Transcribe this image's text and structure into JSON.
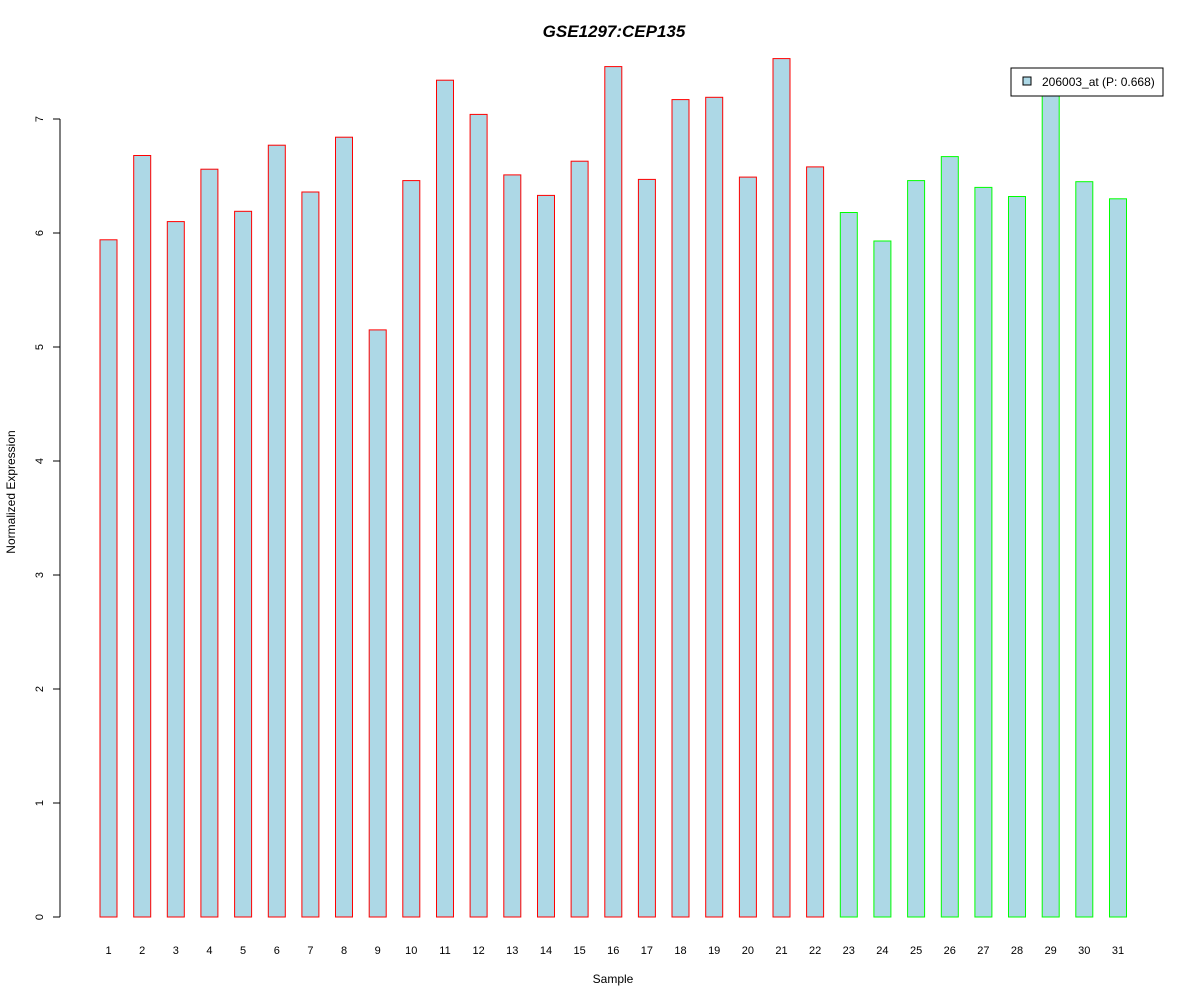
{
  "chart_data": {
    "type": "bar",
    "title": "GSE1297:CEP135",
    "xlabel": "Sample",
    "ylabel": "Normalized Expression",
    "categories": [
      "1",
      "2",
      "3",
      "4",
      "5",
      "6",
      "7",
      "8",
      "9",
      "10",
      "11",
      "12",
      "13",
      "14",
      "15",
      "16",
      "17",
      "18",
      "19",
      "20",
      "21",
      "22",
      "23",
      "24",
      "25",
      "26",
      "27",
      "28",
      "29",
      "30",
      "31"
    ],
    "series": [
      {
        "name": "206003_at (P: 0.668)",
        "values": [
          5.94,
          6.68,
          6.1,
          6.56,
          6.19,
          6.77,
          6.36,
          6.84,
          5.15,
          6.46,
          7.34,
          7.04,
          6.51,
          6.33,
          6.63,
          7.46,
          6.47,
          7.17,
          7.19,
          6.49,
          7.53,
          6.58,
          6.18,
          5.93,
          6.46,
          6.67,
          6.4,
          6.32,
          7.22,
          6.45,
          6.3
        ]
      }
    ],
    "group_border_colors": [
      "#ff0000",
      "#ff0000",
      "#ff0000",
      "#ff0000",
      "#ff0000",
      "#ff0000",
      "#ff0000",
      "#ff0000",
      "#ff0000",
      "#ff0000",
      "#ff0000",
      "#ff0000",
      "#ff0000",
      "#ff0000",
      "#ff0000",
      "#ff0000",
      "#ff0000",
      "#ff0000",
      "#ff0000",
      "#ff0000",
      "#ff0000",
      "#ff0000",
      "#00ff00",
      "#00ff00",
      "#00ff00",
      "#00ff00",
      "#00ff00",
      "#00ff00",
      "#00ff00",
      "#00ff00",
      "#00ff00"
    ],
    "yticks": [
      0,
      1,
      2,
      3,
      4,
      5,
      6,
      7
    ],
    "ylim": [
      0,
      7.65
    ],
    "bar_fill": "#add8e6",
    "title_color": "#0000cc",
    "legend_position": "top-right",
    "grid": false
  }
}
